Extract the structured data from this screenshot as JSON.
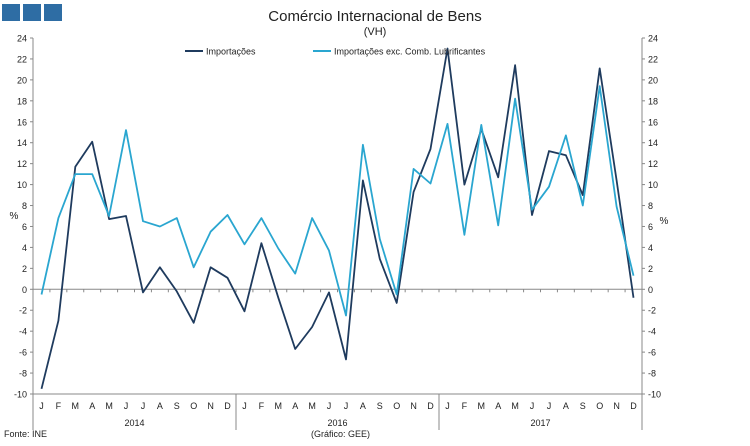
{
  "header": {
    "squares": 3,
    "square_color": "#2e6da4"
  },
  "chart_data": {
    "type": "line",
    "title": "Comércio Internacional de Bens",
    "subtitle": "(VH)",
    "ylabel": "%",
    "ylabel_right": "%",
    "ylim": [
      -10,
      24
    ],
    "ytick_step": 2,
    "grid": false,
    "legend_position": "top",
    "month_labels": [
      "J",
      "F",
      "M",
      "A",
      "M",
      "J",
      "J",
      "A",
      "S",
      "O",
      "N",
      "D",
      "J",
      "F",
      "M",
      "A",
      "M",
      "J",
      "J",
      "A",
      "S",
      "O",
      "N",
      "D",
      "J",
      "F",
      "M",
      "A",
      "M",
      "J",
      "J",
      "A",
      "S",
      "O",
      "N",
      "D"
    ],
    "year_labels": [
      "2014",
      "2016",
      "2017"
    ],
    "series": [
      {
        "name": "Importações",
        "color": "#1f3b5e",
        "values": [
          -9.5,
          -3.0,
          11.7,
          14.1,
          6.7,
          7.0,
          -0.3,
          2.1,
          -0.2,
          -3.2,
          2.1,
          1.1,
          -2.1,
          4.4,
          -0.8,
          -5.7,
          -3.6,
          -0.3,
          -6.7,
          10.4,
          2.9,
          -1.3,
          9.3,
          13.4,
          23.0,
          10.0,
          15.3,
          10.7,
          21.4,
          7.1,
          13.2,
          12.8,
          9.0,
          21.1,
          10.4,
          -0.8
        ]
      },
      {
        "name": "Importações exc. Comb. Lubrificantes",
        "color": "#2aa6d0",
        "values": [
          -0.5,
          6.8,
          11.0,
          11.0,
          7.0,
          15.2,
          6.5,
          6.0,
          6.8,
          2.1,
          5.5,
          7.1,
          4.3,
          6.8,
          3.9,
          1.5,
          6.8,
          3.7,
          -2.5,
          13.8,
          4.8,
          -0.5,
          11.5,
          10.1,
          15.8,
          5.2,
          15.7,
          6.1,
          18.2,
          7.6,
          9.8,
          14.7,
          8.0,
          19.4,
          7.9,
          1.3
        ]
      }
    ]
  },
  "footer": {
    "source": "Fonte: INE",
    "credit": "(Gráfico: GEE)"
  }
}
